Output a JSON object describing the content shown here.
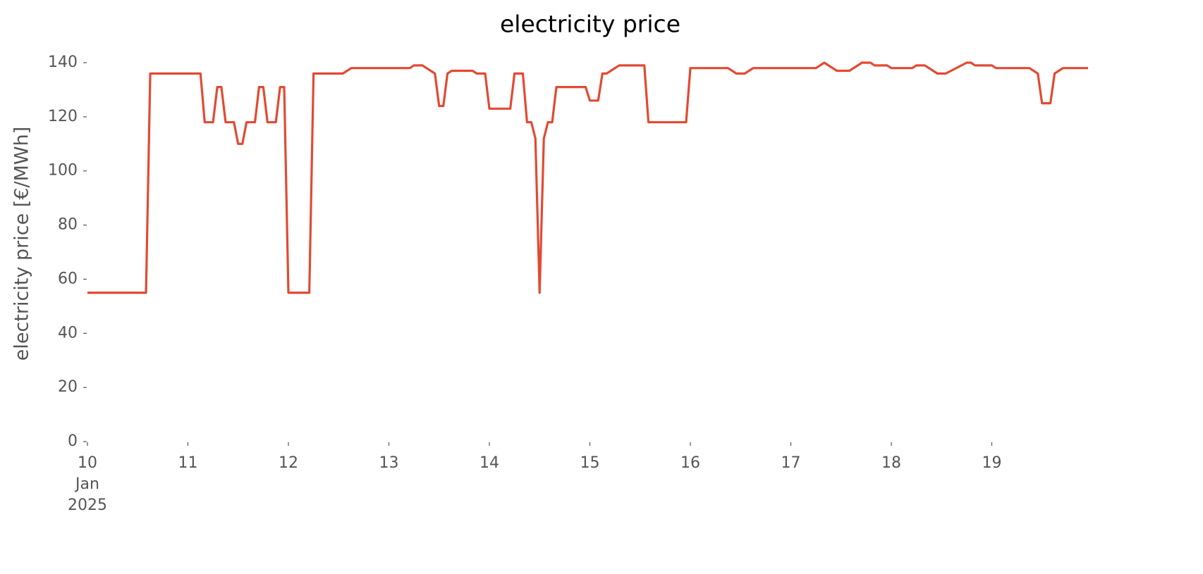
{
  "chart_data": {
    "type": "line",
    "title": "electricity price",
    "ylabel": "electricity price [€/MWh]",
    "x": [
      10.0,
      10.583,
      10.625,
      11.125,
      11.167,
      11.25,
      11.292,
      11.333,
      11.375,
      11.458,
      11.5,
      11.542,
      11.583,
      11.667,
      11.708,
      11.75,
      11.792,
      11.875,
      11.917,
      11.958,
      12,
      12.208,
      12.25,
      12.542,
      12.625,
      13.208,
      13.25,
      13.333,
      13.458,
      13.5,
      13.542,
      13.583,
      13.625,
      13.833,
      13.875,
      13.958,
      14,
      14.208,
      14.25,
      14.333,
      14.375,
      14.417,
      14.458,
      14.5,
      14.542,
      14.583,
      14.625,
      14.667,
      14.958,
      15,
      15.083,
      15.125,
      15.167,
      15.292,
      15.542,
      15.583,
      15.958,
      16,
      16.375,
      16.458,
      16.542,
      16.625,
      17.25,
      17.292,
      17.333,
      17.458,
      17.583,
      17.708,
      17.792,
      17.833,
      17.958,
      18,
      18.208,
      18.25,
      18.333,
      18.458,
      18.542,
      18.75,
      18.792,
      18.833,
      19,
      19.042,
      19.375,
      19.458,
      19.5,
      19.583,
      19.625,
      19.708,
      19.958
    ],
    "series": [
      {
        "name": "electricity price",
        "color": "#E24A33",
        "values": [
          55,
          55,
          136,
          136,
          118,
          118,
          131,
          131,
          118,
          118,
          110,
          110,
          118,
          118,
          131,
          131,
          118,
          118,
          131,
          131,
          55,
          55,
          136,
          136,
          138,
          138,
          139,
          139,
          136,
          124,
          124,
          136,
          137,
          137,
          136,
          136,
          123,
          123,
          136,
          136,
          118,
          118,
          112,
          55,
          112,
          118,
          118,
          131,
          131,
          126,
          126,
          136,
          136,
          139,
          139,
          118,
          118,
          138,
          138,
          136,
          136,
          138,
          138,
          139,
          140,
          137,
          137,
          140,
          140,
          139,
          139,
          138,
          138,
          139,
          139,
          136,
          136,
          140,
          140,
          139,
          139,
          138,
          138,
          136,
          125,
          125,
          136,
          138,
          138
        ]
      }
    ],
    "xlim": [
      10,
      19.958
    ],
    "xticks": [
      10,
      11,
      12,
      13,
      14,
      15,
      16,
      17,
      18,
      19
    ],
    "x_month": "Jan",
    "x_year": "2025",
    "ylim": [
      0,
      140
    ],
    "yticks": [
      0,
      20,
      40,
      60,
      80,
      100,
      120,
      140
    ],
    "grid": false
  }
}
